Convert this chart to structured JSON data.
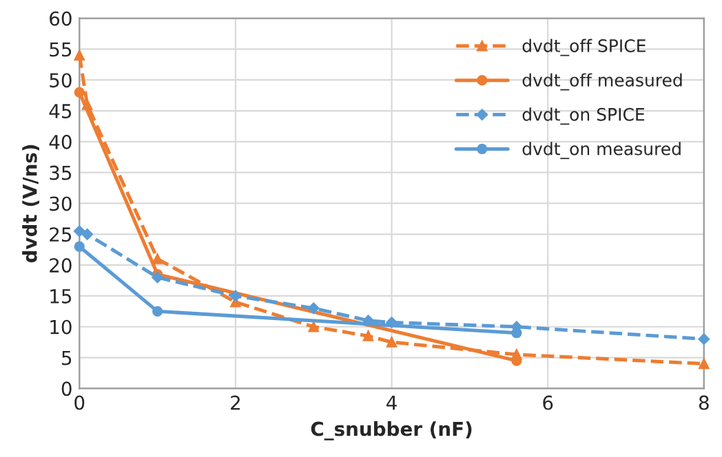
{
  "chart_data": {
    "type": "line",
    "xlabel": "C_snubber (nF)",
    "ylabel": "dvdt (V/ns)",
    "xlim": [
      0,
      8
    ],
    "xticks": [
      0,
      2,
      4,
      6,
      8
    ],
    "ylim": [
      0,
      60
    ],
    "yticks": [
      0,
      5,
      10,
      15,
      20,
      25,
      30,
      35,
      40,
      45,
      50,
      55,
      60
    ],
    "grid": true,
    "legend": "top right",
    "series": [
      {
        "name": "dvdt_off SPICE",
        "color": "#ed7d31",
        "marker": "triangle",
        "line_style": "dashed",
        "x": [
          0,
          0.1,
          1,
          2,
          3,
          3.7,
          4,
          5.6,
          8
        ],
        "values": [
          54,
          46,
          21,
          14,
          10,
          8.5,
          7.5,
          5.5,
          4
        ]
      },
      {
        "name": "dvdt_off measured",
        "color": "#ed7d31",
        "marker": "circle",
        "line_style": "solid",
        "x": [
          0,
          1,
          5.6
        ],
        "values": [
          48,
          18.5,
          4.5
        ]
      },
      {
        "name": "dvdt_on SPICE",
        "color": "#5b9bd5",
        "marker": "diamond",
        "line_style": "dashed",
        "x": [
          0,
          0.1,
          1,
          2,
          3,
          3.7,
          4,
          5.6,
          8
        ],
        "values": [
          25.5,
          25,
          18,
          15,
          13,
          11,
          10.7,
          10,
          8
        ]
      },
      {
        "name": "dvdt_on measured",
        "color": "#5b9bd5",
        "marker": "circle",
        "line_style": "solid",
        "x": [
          0,
          1,
          5.6
        ],
        "values": [
          23,
          12.5,
          9
        ]
      }
    ]
  }
}
